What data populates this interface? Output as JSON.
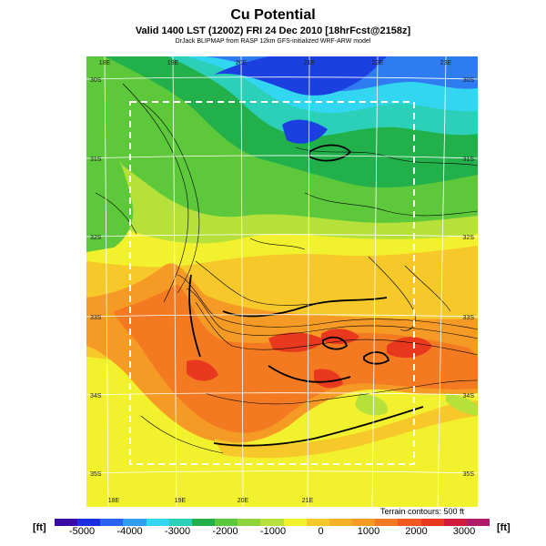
{
  "header": {
    "title": "Cu Potential",
    "subtitle": "Valid 1400 LST (1200Z) FRI 24 Dec 2010 [18hrFcst@2158z]",
    "credit": "DrJack BLIPMAP from RASP 12km GFS-initialized WRF-ARW model"
  },
  "map": {
    "lon_labels_top": [
      "18E",
      "19E",
      "20E",
      "21E",
      "22E",
      "23E"
    ],
    "lon_labels_bottom": [
      "18E",
      "19E",
      "20E",
      "21E"
    ],
    "lat_labels_left": [
      "30S",
      "31S",
      "32S",
      "33S",
      "34S",
      "35S"
    ],
    "lat_labels_right": [
      "30S",
      "31S",
      "32S",
      "33S",
      "34S",
      "35S"
    ],
    "terrain_note": "Terrain contours: 500 ft",
    "colors": {
      "deep_blue": "#1c40e0",
      "blue": "#2f7cf0",
      "cyan": "#33d6f0",
      "teal": "#2ccfb8",
      "green": "#22b04a",
      "light_green": "#5dc83a",
      "yellow_green": "#b6e03a",
      "yellow": "#f2f12d",
      "orange_yellow": "#f6c82a",
      "orange": "#f59a24",
      "dark_orange": "#f47a22",
      "red": "#e8381e"
    }
  },
  "colorbar": {
    "unit_left": "[ft]",
    "unit_right": "[ft]",
    "ticks": [
      "-5000",
      "-4000",
      "-3000",
      "-2000",
      "-1000",
      "0",
      "1000",
      "2000",
      "3000"
    ],
    "colors": [
      "#3a0aa8",
      "#1a2fe0",
      "#2b63f0",
      "#2f9ff2",
      "#33d6f0",
      "#2ccfb8",
      "#22b04a",
      "#5dc83a",
      "#8ed43a",
      "#b6e03a",
      "#f2f12d",
      "#f6c82a",
      "#f5b026",
      "#f59a24",
      "#f47a22",
      "#f05a20",
      "#e8381e",
      "#d21a3a",
      "#b01a6a"
    ]
  }
}
